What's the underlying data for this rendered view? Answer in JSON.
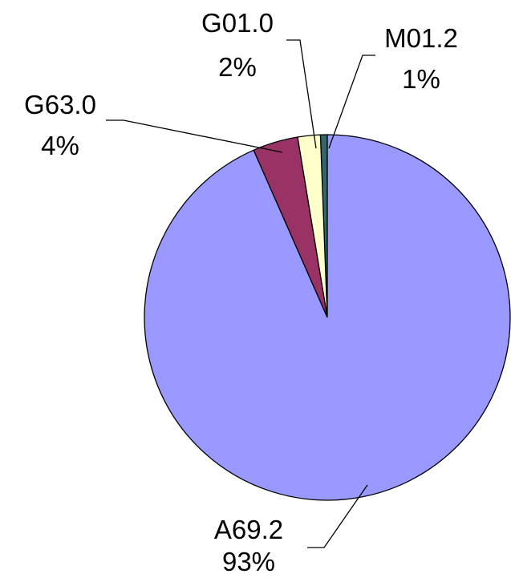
{
  "chart_data": {
    "type": "pie",
    "title": "",
    "start_angle_deg": 90,
    "direction": "counterclockwise",
    "slices": [
      {
        "label": "M01.2",
        "percent_label": "1%",
        "value": 0.6,
        "color": "#336666"
      },
      {
        "label": "G01.0",
        "percent_label": "2%",
        "value": 2.0,
        "color": "#FFFFCC"
      },
      {
        "label": "G63.0",
        "percent_label": "4%",
        "value": 4.0,
        "color": "#993366"
      },
      {
        "label": "A69.2",
        "percent_label": "93%",
        "value": 93.4,
        "color": "#9999FF"
      }
    ]
  }
}
